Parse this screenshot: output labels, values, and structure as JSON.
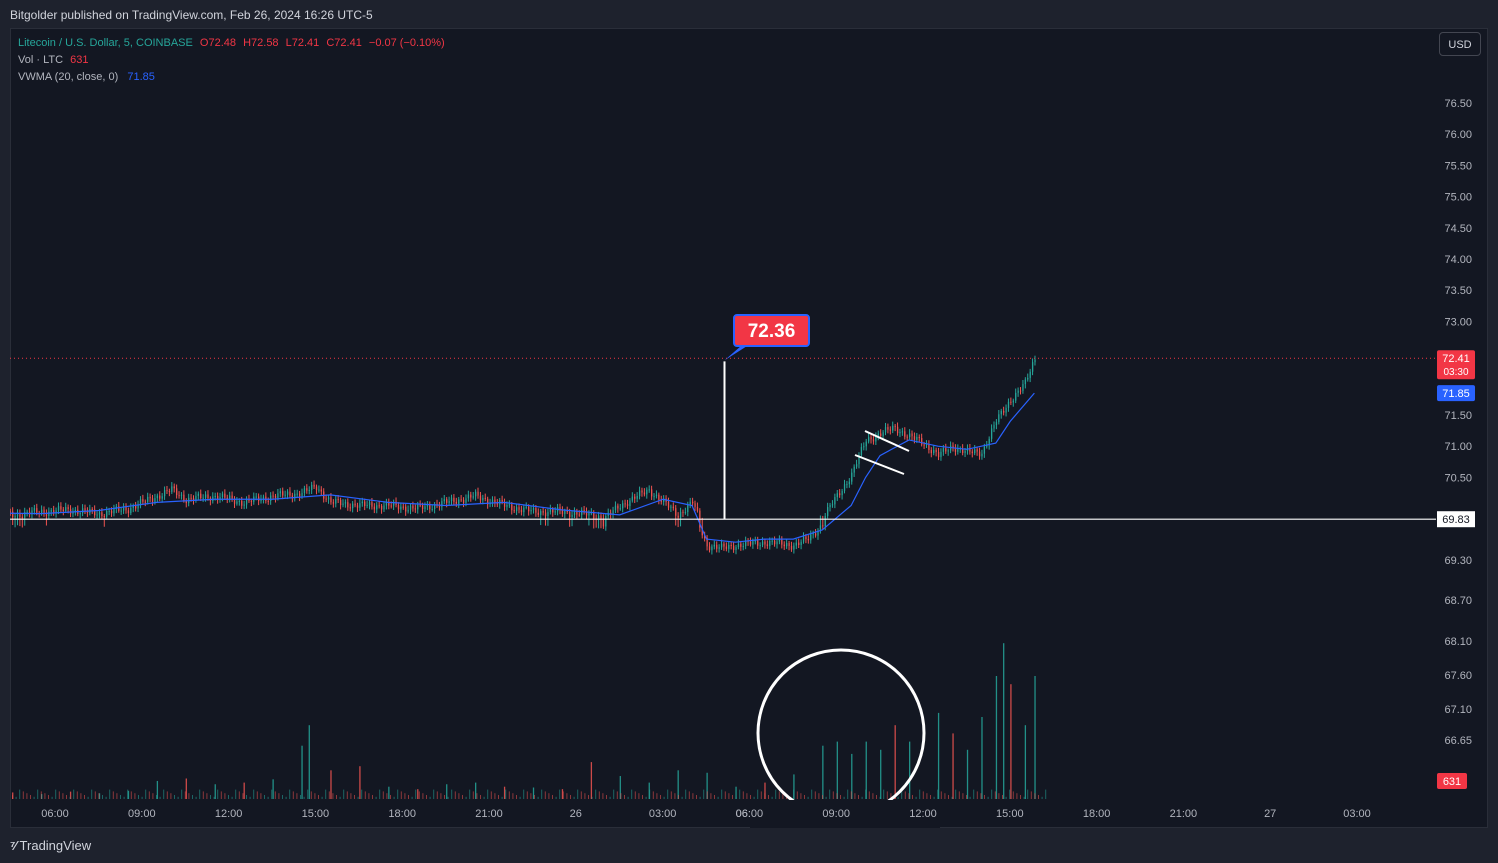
{
  "header": {
    "published": "Bitgolder published on TradingView.com, Feb 26, 2024 16:26 UTC-5"
  },
  "legend": {
    "symbol": "Litecoin / U.S. Dollar, 5, COINBASE",
    "open": "O72.48",
    "high": "H72.58",
    "low": "L72.41",
    "close": "C72.41",
    "change": "−0.07 (−0.10%)",
    "volume_label": "Vol · LTC",
    "volume_value": "631",
    "vwma_label": "VWMA (20, close, 0)",
    "vwma_value": "71.85"
  },
  "currency_button": "USD",
  "branding": {
    "logo": "TradingView"
  },
  "colors": {
    "up": "#26a69a",
    "down": "#ef5350",
    "vwma": "#2962ff",
    "price_tag": "#f23645",
    "background": "#131722"
  },
  "chart_data": {
    "type": "candlestick",
    "price_axis": {
      "ticks": [
        "76.50",
        "76.00",
        "75.50",
        "75.00",
        "74.50",
        "74.00",
        "73.50",
        "73.00",
        "71.50",
        "71.00",
        "70.50",
        "69.30",
        "68.70",
        "68.10",
        "67.60",
        "67.10",
        "66.65"
      ],
      "values": [
        76.5,
        76.0,
        75.5,
        75.0,
        74.5,
        74.0,
        73.5,
        73.0,
        71.5,
        71.0,
        70.5,
        69.3,
        68.7,
        68.1,
        67.6,
        67.1,
        66.65
      ]
    },
    "time_axis": {
      "ticks": [
        "06:00",
        "09:00",
        "12:00",
        "15:00",
        "18:00",
        "21:00",
        "26",
        "03:00",
        "06:00",
        "09:00",
        "12:00",
        "15:00",
        "18:00",
        "21:00",
        "27",
        "03:00"
      ]
    },
    "last_price": {
      "value": "72.41",
      "countdown": "03:30"
    },
    "vwma_tag": "71.85",
    "volume_tag": "631",
    "horizontal_line": {
      "value": "69.83",
      "label": "69.83"
    },
    "annotation": {
      "label": "72.36",
      "from_price": 69.83,
      "to_price": 72.36,
      "time": "04:45"
    },
    "price_path": [
      [
        "04:00",
        69.95
      ],
      [
        "05:00",
        69.9
      ],
      [
        "06:00",
        69.95
      ],
      [
        "07:00",
        69.98
      ],
      [
        "08:00",
        69.92
      ],
      [
        "09:00",
        70.0
      ],
      [
        "10:00",
        70.2
      ],
      [
        "10:30",
        70.3
      ],
      [
        "11:00",
        70.15
      ],
      [
        "12:00",
        70.2
      ],
      [
        "13:00",
        70.1
      ],
      [
        "14:00",
        70.2
      ],
      [
        "15:00",
        70.25
      ],
      [
        "15:30",
        70.35
      ],
      [
        "16:00",
        70.1
      ],
      [
        "17:00",
        70.05
      ],
      [
        "18:00",
        70.05
      ],
      [
        "19:00",
        70.0
      ],
      [
        "20:00",
        70.1
      ],
      [
        "21:00",
        70.2
      ],
      [
        "22:00",
        70.05
      ],
      [
        "23:00",
        69.95
      ],
      [
        "00:00",
        69.95
      ],
      [
        "01:00",
        69.9
      ],
      [
        "01:30",
        69.85
      ],
      [
        "02:00",
        70.05
      ],
      [
        "03:00",
        70.3
      ],
      [
        "03:30",
        70.1
      ],
      [
        "04:00",
        69.9
      ],
      [
        "04:30",
        70.1
      ],
      [
        "05:00",
        69.5
      ],
      [
        "05:30",
        69.45
      ],
      [
        "06:00",
        69.5
      ],
      [
        "07:00",
        69.55
      ],
      [
        "08:00",
        69.5
      ],
      [
        "08:30",
        69.6
      ],
      [
        "09:00",
        69.85
      ],
      [
        "09:30",
        70.2
      ],
      [
        "10:00",
        70.55
      ],
      [
        "10:30",
        71.1
      ],
      [
        "11:00",
        71.2
      ],
      [
        "11:30",
        71.3
      ],
      [
        "12:00",
        71.15
      ],
      [
        "12:30",
        71.05
      ],
      [
        "13:00",
        70.85
      ],
      [
        "13:30",
        71.0
      ],
      [
        "14:00",
        70.9
      ],
      [
        "14:30",
        70.9
      ],
      [
        "15:00",
        71.4
      ],
      [
        "15:30",
        71.75
      ],
      [
        "16:00",
        72.0
      ],
      [
        "16:20",
        72.41
      ]
    ],
    "vwma_path": [
      [
        "04:00",
        69.93
      ],
      [
        "06:00",
        69.92
      ],
      [
        "08:00",
        69.97
      ],
      [
        "10:00",
        70.1
      ],
      [
        "12:00",
        70.15
      ],
      [
        "14:00",
        70.15
      ],
      [
        "16:00",
        70.22
      ],
      [
        "18:00",
        70.1
      ],
      [
        "20:00",
        70.05
      ],
      [
        "22:00",
        70.1
      ],
      [
        "00:00",
        69.98
      ],
      [
        "02:00",
        69.9
      ],
      [
        "03:30",
        70.15
      ],
      [
        "04:30",
        70.05
      ],
      [
        "05:00",
        69.6
      ],
      [
        "06:00",
        69.55
      ],
      [
        "07:00",
        69.6
      ],
      [
        "08:00",
        69.6
      ],
      [
        "09:00",
        69.75
      ],
      [
        "10:00",
        70.05
      ],
      [
        "10:30",
        70.5
      ],
      [
        "11:00",
        70.85
      ],
      [
        "12:00",
        71.1
      ],
      [
        "13:00",
        71.0
      ],
      [
        "14:00",
        70.95
      ],
      [
        "15:00",
        71.05
      ],
      [
        "15:30",
        71.4
      ],
      [
        "16:20",
        71.85
      ]
    ],
    "volume_bars": [
      [
        "04:00",
        5,
        "up"
      ],
      [
        "05:00",
        8,
        "down"
      ],
      [
        "06:00",
        6,
        "up"
      ],
      [
        "07:00",
        9,
        "down"
      ],
      [
        "08:00",
        7,
        "up"
      ],
      [
        "09:00",
        10,
        "up"
      ],
      [
        "10:00",
        22,
        "up"
      ],
      [
        "11:00",
        25,
        "down"
      ],
      [
        "12:00",
        18,
        "up"
      ],
      [
        "13:00",
        20,
        "down"
      ],
      [
        "14:00",
        24,
        "up"
      ],
      [
        "15:00",
        65,
        "up"
      ],
      [
        "15:15",
        90,
        "up"
      ],
      [
        "16:00",
        35,
        "down"
      ],
      [
        "17:00",
        40,
        "down"
      ],
      [
        "18:00",
        15,
        "up"
      ],
      [
        "19:00",
        12,
        "down"
      ],
      [
        "20:00",
        18,
        "up"
      ],
      [
        "21:00",
        20,
        "up"
      ],
      [
        "22:00",
        15,
        "down"
      ],
      [
        "23:00",
        14,
        "up"
      ],
      [
        "00:00",
        12,
        "down"
      ],
      [
        "01:00",
        45,
        "down"
      ],
      [
        "02:00",
        28,
        "up"
      ],
      [
        "03:00",
        20,
        "up"
      ],
      [
        "04:00",
        35,
        "up"
      ],
      [
        "05:00",
        32,
        "up"
      ],
      [
        "06:00",
        15,
        "up"
      ],
      [
        "07:00",
        20,
        "down"
      ],
      [
        "08:00",
        30,
        "up"
      ],
      [
        "09:00",
        65,
        "up"
      ],
      [
        "09:30",
        70,
        "up"
      ],
      [
        "10:00",
        55,
        "up"
      ],
      [
        "10:30",
        70,
        "up"
      ],
      [
        "11:00",
        60,
        "up"
      ],
      [
        "11:30",
        90,
        "down"
      ],
      [
        "12:00",
        70,
        "up"
      ],
      [
        "13:00",
        105,
        "up"
      ],
      [
        "13:30",
        80,
        "down"
      ],
      [
        "14:00",
        60,
        "up"
      ],
      [
        "14:30",
        100,
        "up"
      ],
      [
        "15:00",
        150,
        "up"
      ],
      [
        "15:15",
        190,
        "up"
      ],
      [
        "15:30",
        140,
        "down"
      ],
      [
        "16:00",
        90,
        "up"
      ],
      [
        "16:20",
        150,
        "up"
      ]
    ]
  }
}
